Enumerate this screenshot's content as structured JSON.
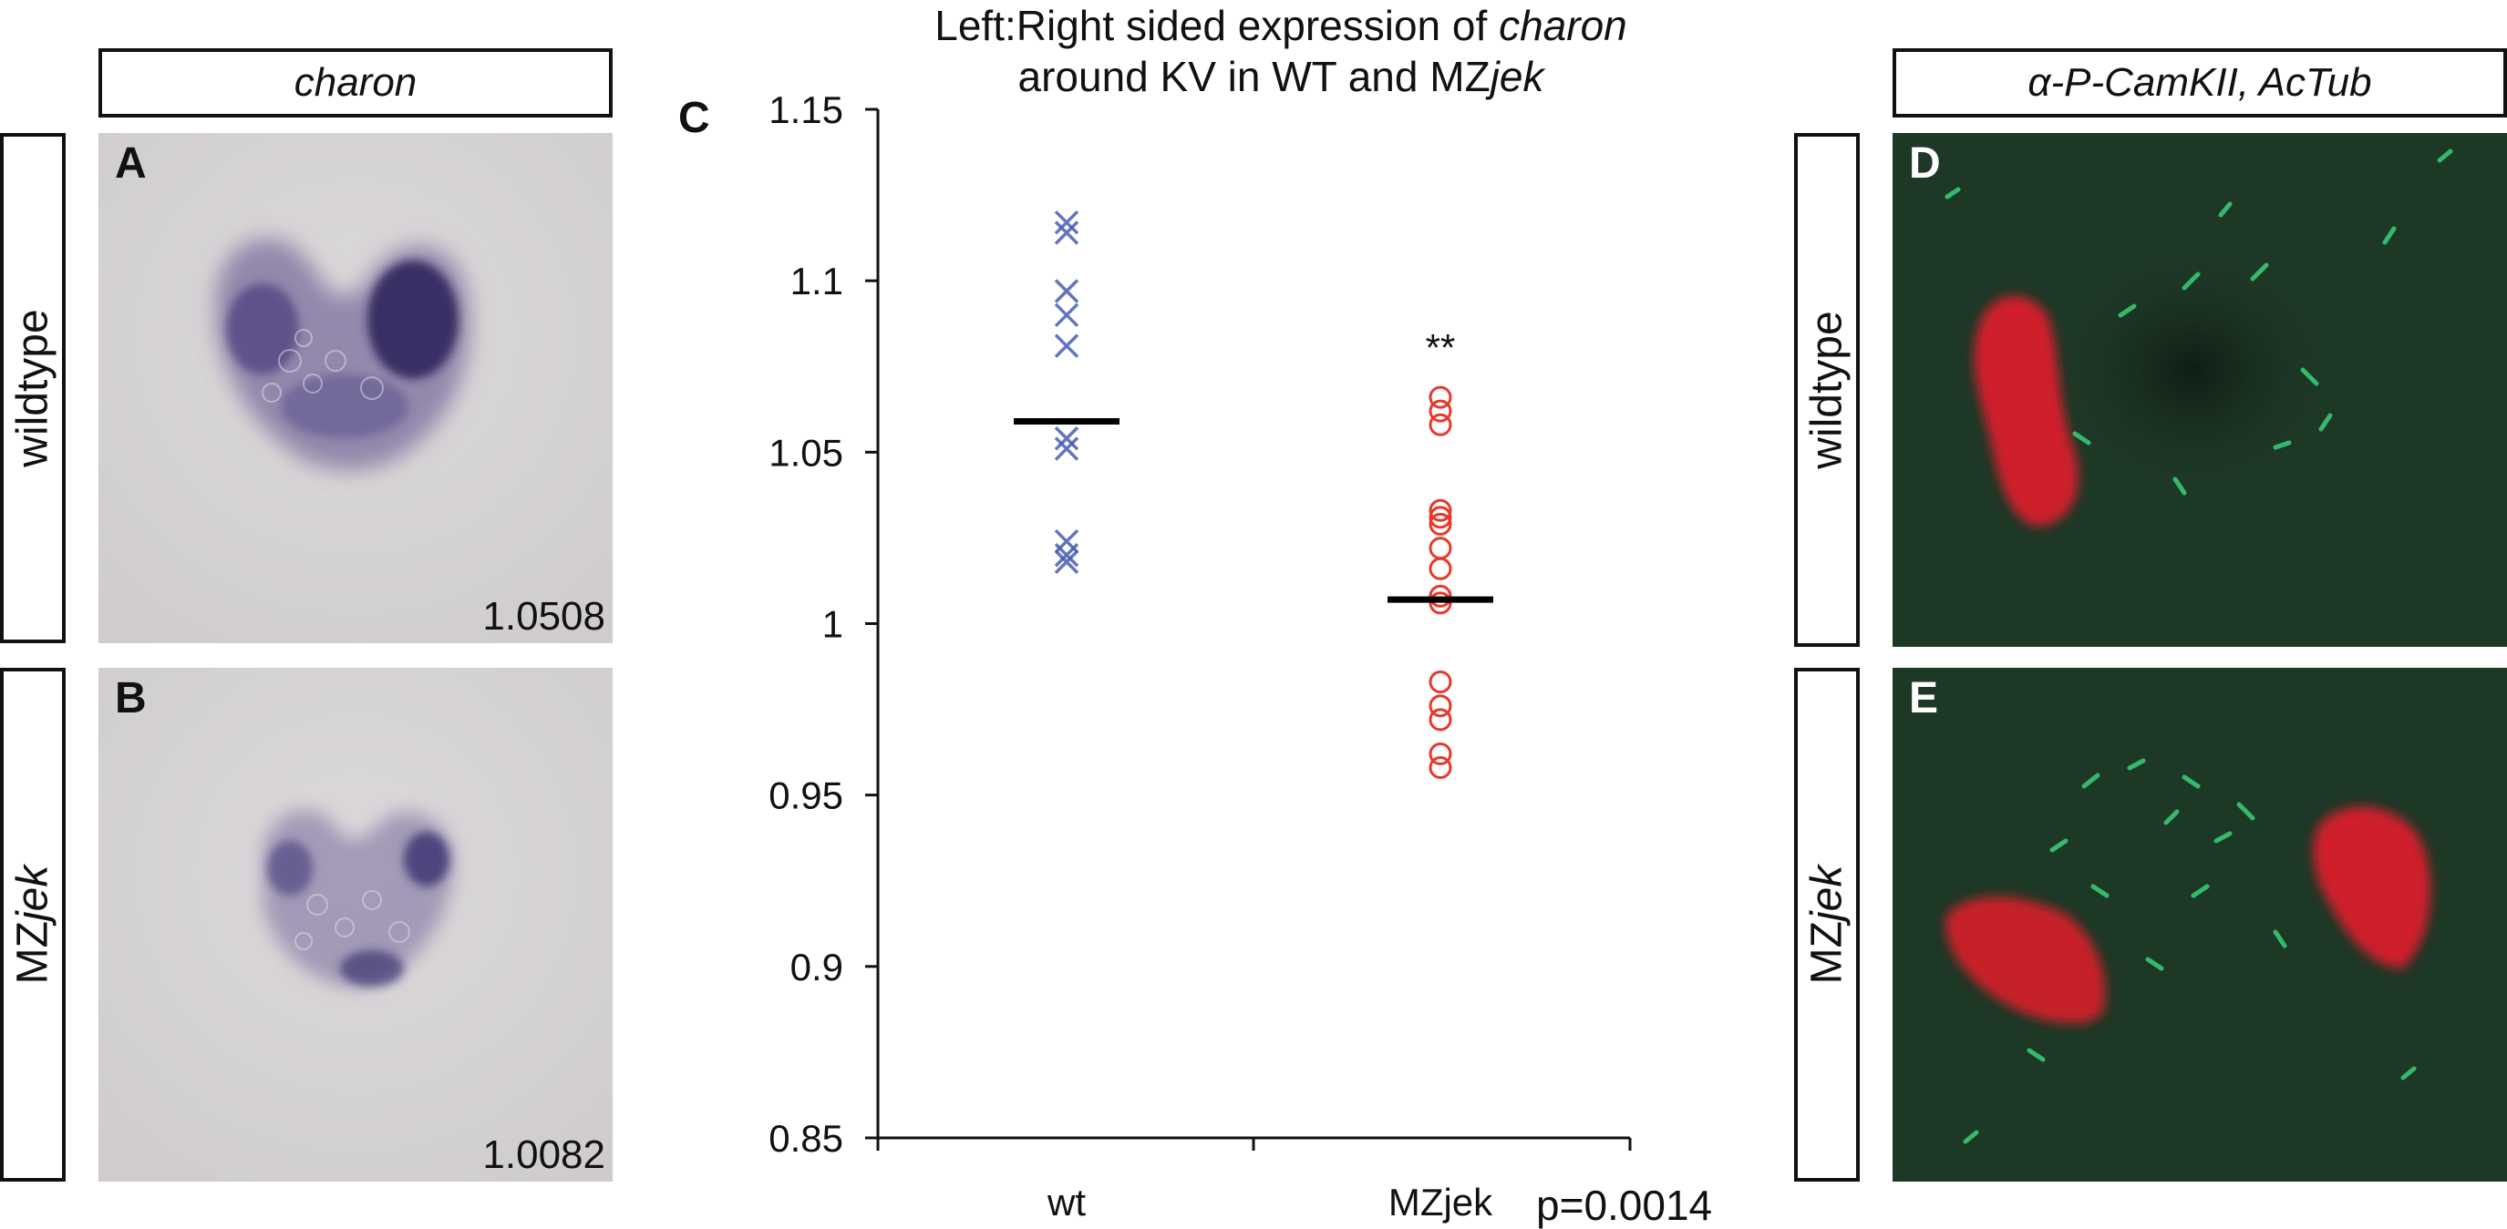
{
  "left_column": {
    "header": "charon",
    "rows": [
      {
        "side_label": "wildtype",
        "panel_label": "A",
        "score": "1.0508"
      },
      {
        "side_label_prefix": "MZ",
        "side_label_italic": "jek",
        "panel_label": "B",
        "score": "1.0082"
      }
    ]
  },
  "chart": {
    "panel_label": "C",
    "title_line1_prefix": "Left:Right sided expression of ",
    "title_line1_italic": "charon",
    "title_line2_prefix": "around KV in WT and MZ",
    "title_line2_italic": "jek",
    "significance": "**",
    "pvalue": "p=0.0014"
  },
  "chart_data": {
    "type": "scatter",
    "categories": [
      "wt",
      "MZjek"
    ],
    "ylim": [
      0.85,
      1.15
    ],
    "yticks": [
      "0.85",
      "0.9",
      "0.95",
      "1",
      "1.05",
      "1.1",
      "1.15"
    ],
    "series": [
      {
        "marker": "x",
        "color": "#4a5db0",
        "values": [
          1.117,
          1.114,
          1.097,
          1.09,
          1.081,
          1.054,
          1.051,
          1.024,
          1.02,
          1.018
        ],
        "mean": 1.059
      },
      {
        "marker": "o",
        "color": "#e8382a",
        "values": [
          1.066,
          1.062,
          1.058,
          1.033,
          1.031,
          1.029,
          1.022,
          1.016,
          1.008,
          1.006,
          0.983,
          0.976,
          0.972,
          0.962,
          0.958
        ],
        "mean": 1.007
      }
    ]
  },
  "right_column": {
    "header": "α-P-CamKII, AcTub",
    "rows": [
      {
        "side_label": "wildtype",
        "panel_label": "D"
      },
      {
        "side_label_prefix": "MZ",
        "side_label_italic": "jek",
        "panel_label": "E"
      }
    ]
  },
  "colors": {
    "ish_background": "#d6d3d6",
    "ish_stain": "#3a2f6e",
    "fluor_background": "#1e3a26",
    "fluor_red": "#e0202a",
    "fluor_green": "#3ad07a"
  }
}
